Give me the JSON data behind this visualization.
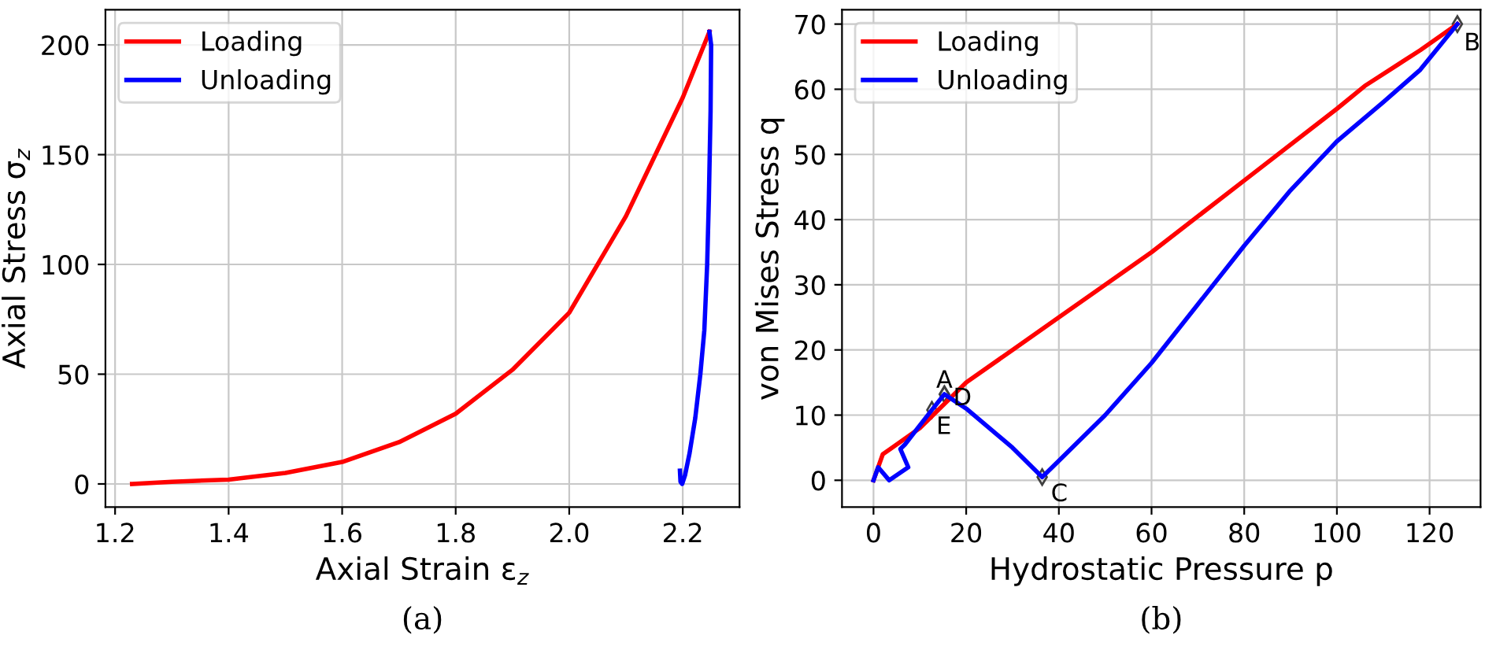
{
  "chart_data": [
    {
      "type": "line",
      "xlabel": "Axial Strain ε$_{z}$",
      "ylabel": "Axial Stress σ$_{z}$",
      "xlim": [
        1.183,
        2.3
      ],
      "ylim": [
        -10.5,
        216
      ],
      "xticks": [
        {
          "value": 1.2,
          "label": "1.2"
        },
        {
          "value": 1.4,
          "label": "1.4"
        },
        {
          "value": 1.6,
          "label": "1.6"
        },
        {
          "value": 1.8,
          "label": "1.8"
        },
        {
          "value": 2.0,
          "label": "2.0"
        },
        {
          "value": 2.2,
          "label": "2.2"
        }
      ],
      "yticks": [
        0,
        50,
        100,
        150,
        200
      ],
      "grid": true,
      "legend": "top left",
      "marker": "none",
      "line_style": "solid",
      "series": [
        {
          "name": "Loading",
          "color": "#ff0000",
          "x": [
            1.23,
            1.3,
            1.4,
            1.5,
            1.6,
            1.7,
            1.8,
            1.9,
            2.0,
            2.1,
            2.2,
            2.247
          ],
          "values": [
            0,
            1,
            2,
            5,
            10,
            19,
            32,
            52,
            78,
            122,
            176,
            206
          ]
        },
        {
          "name": "Unloading",
          "color": "#0000ff",
          "x": [
            2.247,
            2.25,
            2.249,
            2.246,
            2.243,
            2.238,
            2.231,
            2.222,
            2.212,
            2.204,
            2.199,
            2.196,
            2.195
          ],
          "values": [
            206,
            200,
            170,
            130,
            100,
            70,
            50,
            30,
            14,
            4,
            0,
            1,
            6
          ]
        }
      ],
      "annotations": [
        "(a)"
      ]
    },
    {
      "type": "line",
      "xlabel": "Hydrostatic Pressure p",
      "ylabel": "von Mises Stress q",
      "xlim": [
        -6.8,
        131
      ],
      "ylim": [
        -4.1,
        72.2
      ],
      "xticks": [
        0,
        20,
        40,
        60,
        80,
        100,
        120
      ],
      "yticks": [
        0,
        10,
        20,
        30,
        40,
        50,
        60,
        70
      ],
      "grid": true,
      "legend": "top left",
      "marker": "none",
      "line_style": "solid",
      "series": [
        {
          "name": "Loading",
          "color": "#ff0000",
          "x": [
            0,
            2,
            4,
            10,
            15,
            20,
            30,
            40,
            60,
            80,
            100,
            106,
            118,
            126
          ],
          "values": [
            0,
            4,
            5,
            8,
            11.5,
            15,
            20,
            25,
            35,
            46,
            57,
            60.5,
            66,
            70
          ]
        },
        {
          "name": "Unloading",
          "color": "#0000ff",
          "x": [
            0,
            1,
            3.4,
            7.5,
            5.8,
            6.8,
            12.6,
            15.3,
            20,
            30,
            36.4,
            40,
            50,
            60,
            70,
            80,
            90,
            100,
            110,
            118,
            126
          ],
          "values": [
            0,
            2,
            0,
            2,
            4.8,
            5.5,
            10.8,
            13.2,
            11,
            5,
            0.5,
            3,
            10,
            18,
            27,
            36,
            44.5,
            52,
            58,
            63,
            70
          ]
        }
      ],
      "annotations": [
        {
          "text": "A",
          "x": 15.3,
          "y": 13.2
        },
        {
          "text": "B",
          "x": 126,
          "y": 70
        },
        {
          "text": "C",
          "x": 36.4,
          "y": 0.5
        },
        {
          "text": "D",
          "x": 15.3,
          "y": 13.2
        },
        {
          "text": "E",
          "x": 12.6,
          "y": 10.8
        },
        "(b)"
      ]
    }
  ]
}
